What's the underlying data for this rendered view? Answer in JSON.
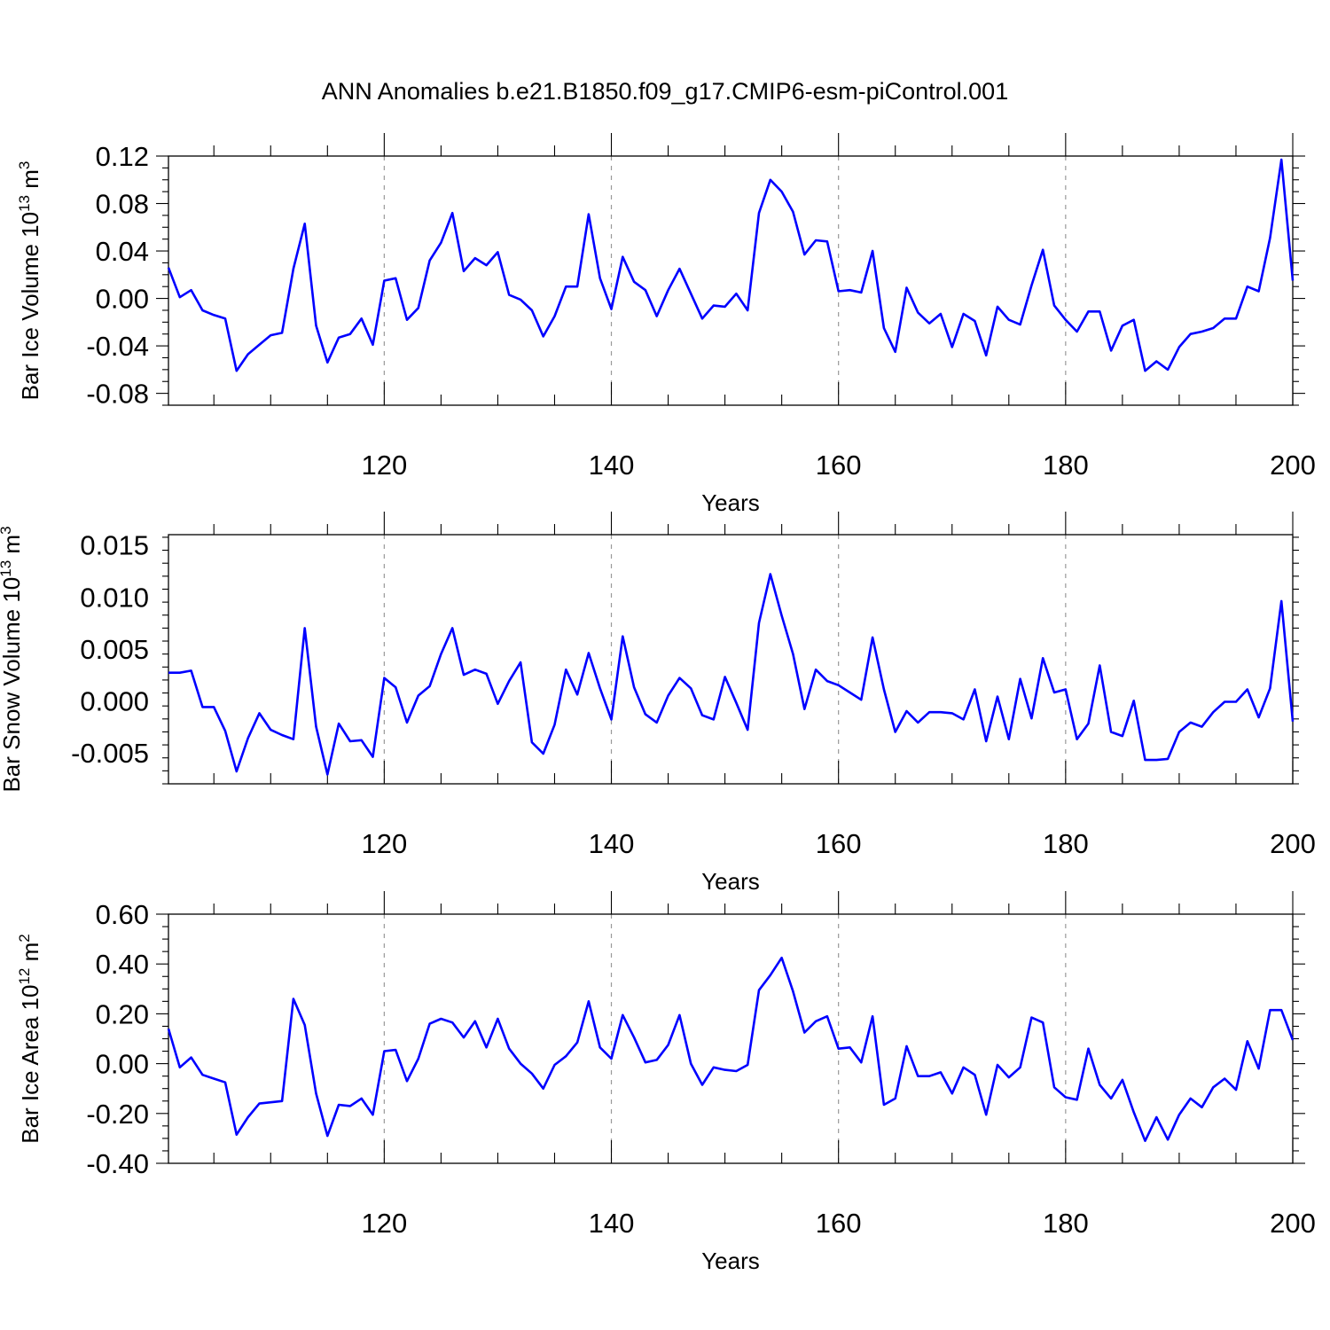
{
  "title": "ANN Anomalies b.e21.B1850.f09_g17.CMIP6-esm-piControl.001",
  "colors": {
    "line": "#0000ff",
    "grid": "#999999"
  },
  "chart_data": [
    {
      "type": "line",
      "id": "ice-volume",
      "ylabel": {
        "text": "Bar Ice Volume 10",
        "sup": "13",
        "unit": " m",
        "unit_sup": "3"
      },
      "xlabel": "Years",
      "xlim": [
        101,
        200
      ],
      "ylim": [
        -0.09,
        0.12
      ],
      "xticks": [
        120,
        140,
        160,
        180,
        200
      ],
      "xtick_labels": [
        "120",
        "140",
        "160",
        "180",
        "200"
      ],
      "yticks": [
        -0.08,
        -0.04,
        0.0,
        0.04,
        0.08,
        0.12
      ],
      "ytick_labels": [
        "-0.08",
        "-0.04",
        "0.00",
        "0.04",
        "0.08",
        "0.12"
      ],
      "grid": "vertical-dashed",
      "x_start": 101,
      "values": [
        0.026,
        0.001,
        0.007,
        -0.01,
        -0.014,
        -0.017,
        -0.061,
        -0.047,
        -0.039,
        -0.031,
        -0.029,
        0.025,
        0.063,
        -0.023,
        -0.054,
        -0.033,
        -0.03,
        -0.017,
        -0.039,
        0.015,
        0.017,
        -0.018,
        -0.008,
        0.032,
        0.047,
        0.072,
        0.023,
        0.034,
        0.028,
        0.039,
        0.003,
        -0.001,
        -0.01,
        -0.032,
        -0.015,
        0.01,
        0.01,
        0.071,
        0.017,
        -0.009,
        0.035,
        0.014,
        0.007,
        -0.015,
        0.007,
        0.025,
        0.004,
        -0.017,
        -0.006,
        -0.007,
        0.004,
        -0.01,
        0.072,
        0.1,
        0.09,
        0.073,
        0.037,
        0.049,
        0.048,
        0.006,
        0.007,
        0.005,
        0.04,
        -0.025,
        -0.045,
        0.009,
        -0.012,
        -0.021,
        -0.013,
        -0.041,
        -0.013,
        -0.019,
        -0.048,
        -0.007,
        -0.018,
        -0.022,
        0.011,
        0.041,
        -0.006,
        -0.018,
        -0.028,
        -0.011,
        -0.011,
        -0.044,
        -0.023,
        -0.018,
        -0.061,
        -0.053,
        -0.06,
        -0.041,
        -0.03,
        -0.028,
        -0.025,
        -0.017,
        -0.017,
        0.01,
        0.006,
        0.051,
        0.117,
        0.015
      ]
    },
    {
      "type": "line",
      "id": "snow-volume",
      "ylabel": {
        "text": "Bar Snow Volume 10",
        "sup": "13",
        "unit": " m",
        "unit_sup": "3"
      },
      "xlabel": "Years",
      "xlim": [
        101,
        200
      ],
      "ylim": [
        -0.008,
        0.016
      ],
      "xticks": [
        120,
        140,
        160,
        180,
        200
      ],
      "xtick_labels": [
        "120",
        "140",
        "160",
        "180",
        "200"
      ],
      "yticks": [
        -0.005,
        0.0,
        0.005,
        0.01,
        0.015
      ],
      "ytick_labels": [
        "-0.005",
        "0.000",
        "0.005",
        "0.010",
        "0.015"
      ],
      "grid": "vertical-dashed",
      "x_start": 101,
      "values": [
        0.0027,
        0.0027,
        0.0029,
        -0.0006,
        -0.0006,
        -0.0029,
        -0.0068,
        -0.0036,
        -0.0012,
        -0.0028,
        -0.0033,
        -0.0037,
        0.007,
        -0.0025,
        -0.0071,
        -0.0022,
        -0.0039,
        -0.0038,
        -0.0054,
        0.0022,
        0.0013,
        -0.0021,
        0.0005,
        0.0014,
        0.0045,
        0.007,
        0.0025,
        0.003,
        0.0026,
        -0.0003,
        0.0019,
        0.0037,
        -0.004,
        -0.0051,
        -0.0023,
        0.003,
        0.0006,
        0.0046,
        0.0012,
        -0.0018,
        0.0062,
        0.0013,
        -0.0013,
        -0.0021,
        0.0005,
        0.0022,
        0.0012,
        -0.0014,
        -0.0018,
        0.0023,
        -0.0002,
        -0.0028,
        0.0075,
        0.0122,
        0.0082,
        0.0045,
        -0.0008,
        0.003,
        0.0019,
        0.0015,
        0.0008,
        0.0001,
        0.0061,
        0.0011,
        -0.003,
        -0.001,
        -0.0021,
        -0.0011,
        -0.0011,
        -0.0012,
        -0.0018,
        0.0011,
        -0.0039,
        0.0004,
        -0.0037,
        0.0021,
        -0.0017,
        0.0041,
        0.0008,
        0.0011,
        -0.0037,
        -0.0022,
        0.0034,
        -0.003,
        -0.0034,
        0.0,
        -0.0057,
        -0.0057,
        -0.0056,
        -0.003,
        -0.0021,
        -0.0025,
        -0.0011,
        -0.0001,
        -0.0001,
        0.0011,
        -0.0016,
        0.0012,
        0.0096,
        -0.002
      ]
    },
    {
      "type": "line",
      "id": "ice-area",
      "ylabel": {
        "text": "Bar Ice Area 10",
        "sup": "12",
        "unit": " m",
        "unit_sup": "2"
      },
      "xlabel": "Years",
      "xlim": [
        101,
        200
      ],
      "ylim": [
        -0.4,
        0.6
      ],
      "xticks": [
        120,
        140,
        160,
        180,
        200
      ],
      "xtick_labels": [
        "120",
        "140",
        "160",
        "180",
        "200"
      ],
      "yticks": [
        -0.4,
        -0.2,
        0.0,
        0.2,
        0.4,
        0.6
      ],
      "ytick_labels": [
        "-0.40",
        "-0.20",
        "0.00",
        "0.20",
        "0.40",
        "0.60"
      ],
      "grid": "vertical-dashed",
      "x_start": 101,
      "values": [
        0.14,
        -0.015,
        0.025,
        -0.045,
        -0.06,
        -0.075,
        -0.285,
        -0.215,
        -0.16,
        -0.155,
        -0.15,
        0.26,
        0.155,
        -0.12,
        -0.29,
        -0.165,
        -0.17,
        -0.14,
        -0.205,
        0.05,
        0.055,
        -0.07,
        0.02,
        0.16,
        0.18,
        0.165,
        0.105,
        0.17,
        0.065,
        0.18,
        0.06,
        0.0,
        -0.04,
        -0.1,
        -0.005,
        0.03,
        0.085,
        0.25,
        0.065,
        0.02,
        0.195,
        0.105,
        0.005,
        0.015,
        0.075,
        0.195,
        0.0,
        -0.085,
        -0.015,
        -0.025,
        -0.03,
        -0.005,
        0.295,
        0.355,
        0.425,
        0.29,
        0.125,
        0.17,
        0.19,
        0.06,
        0.065,
        0.005,
        0.19,
        -0.165,
        -0.14,
        0.07,
        -0.05,
        -0.05,
        -0.035,
        -0.12,
        -0.015,
        -0.045,
        -0.205,
        -0.005,
        -0.055,
        -0.015,
        0.185,
        0.165,
        -0.095,
        -0.135,
        -0.145,
        0.06,
        -0.085,
        -0.14,
        -0.065,
        -0.195,
        -0.31,
        -0.215,
        -0.305,
        -0.205,
        -0.14,
        -0.175,
        -0.095,
        -0.06,
        -0.105,
        0.09,
        -0.02,
        0.215,
        0.215,
        0.095
      ]
    }
  ]
}
